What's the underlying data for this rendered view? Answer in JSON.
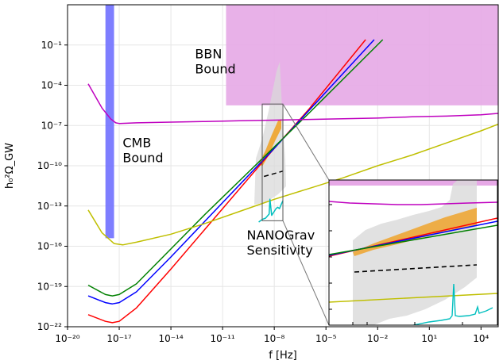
{
  "chart_data": {
    "type": "line",
    "xlabel": "f [Hz]",
    "ylabel": "h₀²Ω_GW",
    "xscale": "log",
    "yscale": "log",
    "xlim": [
      1e-20,
      100000.0
    ],
    "ylim": [
      1e-22,
      100.0
    ],
    "grid": true,
    "x_ticks": [
      {
        "value": -20,
        "label": "10⁻²⁰"
      },
      {
        "value": -17,
        "label": "10⁻¹⁷"
      },
      {
        "value": -14,
        "label": "10⁻¹⁴"
      },
      {
        "value": -11,
        "label": "10⁻¹¹"
      },
      {
        "value": -8,
        "label": "10⁻⁸"
      },
      {
        "value": -5,
        "label": "10⁻⁵"
      },
      {
        "value": -2,
        "label": "10⁻²"
      },
      {
        "value": 1,
        "label": "10¹"
      },
      {
        "value": 4,
        "label": "10⁴"
      }
    ],
    "y_ticks": [
      {
        "value": -1,
        "label": "10⁻¹"
      },
      {
        "value": -4,
        "label": "10⁻⁴"
      },
      {
        "value": -7,
        "label": "10⁻⁷"
      },
      {
        "value": -10,
        "label": "10⁻¹⁰"
      },
      {
        "value": -13,
        "label": "10⁻¹³"
      },
      {
        "value": -16,
        "label": "10⁻¹⁶"
      },
      {
        "value": -19,
        "label": "10⁻¹⁹"
      },
      {
        "value": -22,
        "label": "10⁻²²"
      }
    ],
    "series": [
      {
        "color": "#ff0000",
        "log_x": [
          -18.8,
          -17.8,
          -17.4,
          -17,
          -16,
          -14,
          -12,
          -10,
          -8,
          -6,
          -2.7
        ],
        "log_y": [
          -21.1,
          -21.6,
          -21.7,
          -21.6,
          -20.6,
          -17.7,
          -14.7,
          -11.7,
          -8.7,
          -5.8,
          -0.6
        ]
      },
      {
        "color": "#0000ff",
        "log_x": [
          -18.8,
          -17.8,
          -17.4,
          -17,
          -16,
          -14,
          -12,
          -10,
          -8,
          -6,
          -2.2
        ],
        "log_y": [
          -19.7,
          -20.2,
          -20.3,
          -20.2,
          -19.4,
          -16.8,
          -14.1,
          -11.4,
          -8.7,
          -5.9,
          -0.6
        ]
      },
      {
        "color": "#008000",
        "log_x": [
          -18.8,
          -17.8,
          -17.4,
          -17,
          -16,
          -14,
          -12,
          -10,
          -8,
          -6,
          -1.7
        ],
        "log_y": [
          -18.9,
          -19.6,
          -19.7,
          -19.6,
          -18.8,
          -16.2,
          -13.6,
          -11.1,
          -8.6,
          -6.1,
          -0.6
        ]
      },
      {
        "color": "#bfbf00",
        "log_x": [
          -18.8,
          -18,
          -17.3,
          -16.8,
          -16,
          -14,
          -12,
          -10,
          -8,
          -6,
          -4,
          -2,
          0,
          2,
          4,
          5
        ],
        "log_y": [
          -13.3,
          -15,
          -15.8,
          -15.9,
          -15.7,
          -15.1,
          -14.3,
          -13.4,
          -12.5,
          -11.7,
          -10.9,
          -10.0,
          -9.2,
          -8.3,
          -7.4,
          -6.9
        ]
      },
      {
        "color": "#bf00bf",
        "log_x": [
          -18.8,
          -18,
          -17.5,
          -17.2,
          -17,
          -16,
          -14,
          -12,
          -10,
          -8,
          -6,
          -4,
          -2,
          0,
          2,
          4,
          5
        ],
        "log_y": [
          -3.9,
          -5.7,
          -6.5,
          -6.8,
          -6.85,
          -6.8,
          -6.75,
          -6.7,
          -6.65,
          -6.6,
          -6.55,
          -6.5,
          -6.45,
          -6.35,
          -6.3,
          -6.2,
          -6.1
        ]
      },
      {
        "color": "#00bfbf",
        "log_x": [
          -8.9,
          -8.7,
          -8.5,
          -8.3,
          -8.25,
          -8.15,
          -8.1,
          -8.0,
          -7.9,
          -7.8,
          -7.7,
          -7.6,
          -7.5
        ],
        "log_y": [
          -14.2,
          -14.0,
          -13.9,
          -13.6,
          -12.5,
          -13.7,
          -13.6,
          -13.4,
          -13.2,
          -13.1,
          -13.2,
          -12.9,
          -12.6
        ]
      },
      {
        "color": "#000000",
        "dash": true,
        "log_x": [
          -8.6,
          -7.5
        ],
        "log_y": [
          -10.8,
          -10.4
        ]
      }
    ],
    "bands": [
      {
        "name": "CMB Bound",
        "color": "#7070ff",
        "log_x": [
          -17.8,
          -17.3
        ],
        "log_y": [
          -15.4,
          2
        ]
      },
      {
        "name": "BBN Bound",
        "color": "#e6a8e6",
        "log_x": [
          -10.8,
          5
        ],
        "log_y": [
          -5.5,
          2
        ]
      }
    ],
    "inset": {
      "box_log_x": [
        -8.7,
        -7.5
      ],
      "box_log_y": [
        -14.1,
        -5.4
      ],
      "xlim": [
        -8.7,
        -7.5
      ],
      "ylim": [
        -11.9,
        -8.8
      ]
    },
    "annotations": [
      {
        "text_lines": [
          "BBN",
          "Bound"
        ],
        "anchor_log": [
          -12.6,
          -2.0
        ]
      },
      {
        "text_lines": [
          "CMB",
          "Bound"
        ],
        "anchor_log": [
          -16.8,
          -8.6
        ]
      },
      {
        "text_lines": [
          "NANOGrav",
          "Sensitivity"
        ],
        "anchor_log": [
          -9.6,
          -15.5
        ]
      }
    ]
  }
}
